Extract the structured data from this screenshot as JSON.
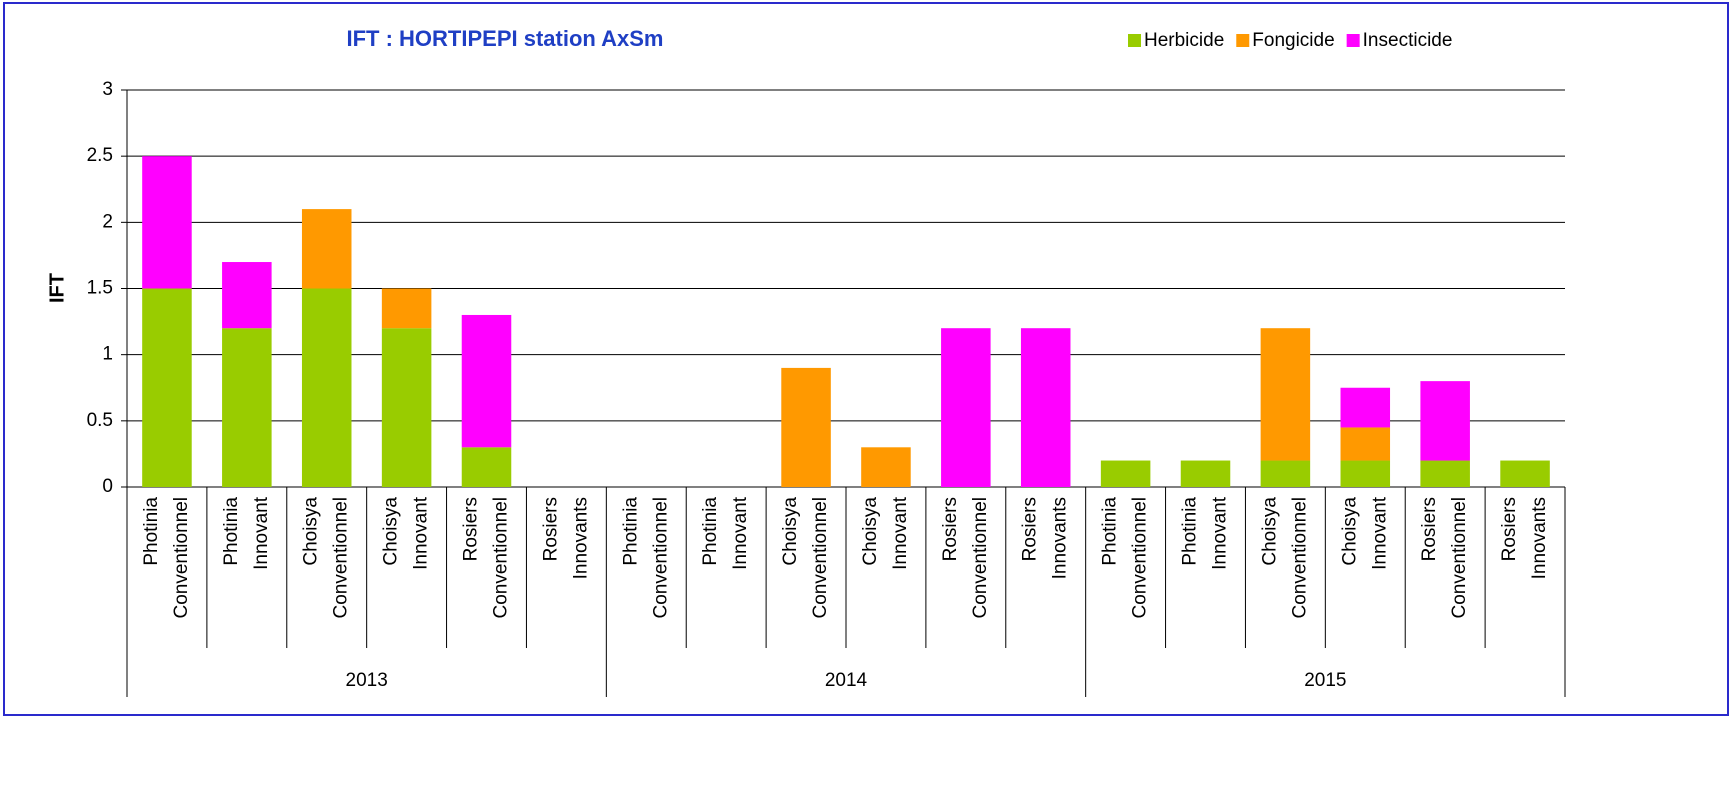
{
  "chart_data": {
    "type": "stacked_bar",
    "title": "IFT : HORTIPEPI station AxSm",
    "y_label": "IFT",
    "categories": [
      [
        "Photinia",
        "Conventionnel"
      ],
      [
        "Photinia",
        "Innovant"
      ],
      [
        "Choisya",
        "Conventionnel"
      ],
      [
        "Choisya",
        "Innovant"
      ],
      [
        "Rosiers",
        "Conventionnel"
      ],
      [
        "Rosiers",
        "Innovants"
      ],
      [
        "Photinia",
        "Conventionnel"
      ],
      [
        "Photinia",
        "Innovant"
      ],
      [
        "Choisya",
        "Conventionnel"
      ],
      [
        "Choisya",
        "Innovant"
      ],
      [
        "Rosiers",
        "Conventionnel"
      ],
      [
        "Rosiers",
        "Innovants"
      ],
      [
        "Photinia",
        "Conventionnel"
      ],
      [
        "Photinia",
        "Innovant"
      ],
      [
        "Choisya",
        "Conventionnel"
      ],
      [
        "Choisya",
        "Innovant"
      ],
      [
        "Rosiers",
        "Conventionnel"
      ],
      [
        "Rosiers",
        "Innovants"
      ]
    ],
    "groups": [
      "2013",
      "2014",
      "2015"
    ],
    "series": [
      {
        "name": "Herbicide",
        "color": "#99cc00",
        "values": [
          1.5,
          1.2,
          1.5,
          1.2,
          0.3,
          0,
          0,
          0,
          0,
          0,
          0,
          0,
          0.2,
          0.2,
          0.2,
          0.2,
          0.2,
          0.2
        ]
      },
      {
        "name": "Fongicide",
        "color": "#ff9900",
        "values": [
          0,
          0,
          0.6,
          0.3,
          0,
          0,
          0,
          0,
          0.9,
          0.3,
          0,
          0,
          0,
          0,
          1.0,
          0.25,
          0,
          0
        ]
      },
      {
        "name": "Insecticide",
        "color": "#ff00ff",
        "values": [
          1.0,
          0.5,
          0,
          0,
          1.0,
          0,
          0,
          0,
          0,
          0,
          1.2,
          1.2,
          0,
          0,
          0,
          0.3,
          0.6,
          0
        ]
      }
    ],
    "ylim": [
      0,
      3
    ],
    "yticks": [
      0,
      0.5,
      1,
      1.5,
      2,
      2.5,
      3
    ],
    "grid": true,
    "legend": "top-right"
  }
}
